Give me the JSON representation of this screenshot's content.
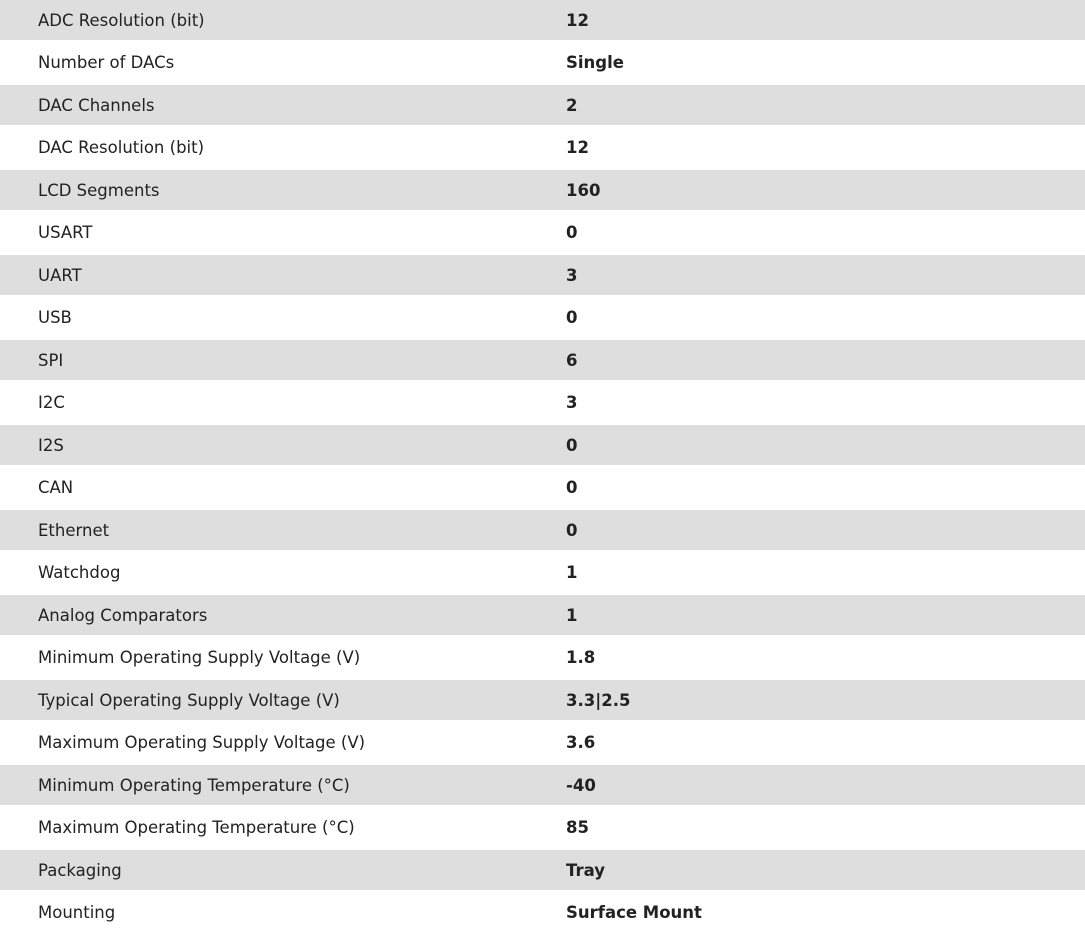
{
  "specs": [
    {
      "label": "ADC Resolution (bit)",
      "value": "12"
    },
    {
      "label": "Number of DACs",
      "value": "Single"
    },
    {
      "label": "DAC Channels",
      "value": "2"
    },
    {
      "label": "DAC Resolution (bit)",
      "value": "12"
    },
    {
      "label": "LCD Segments",
      "value": "160"
    },
    {
      "label": "USART",
      "value": "0"
    },
    {
      "label": "UART",
      "value": "3"
    },
    {
      "label": "USB",
      "value": "0"
    },
    {
      "label": "SPI",
      "value": "6"
    },
    {
      "label": "I2C",
      "value": "3"
    },
    {
      "label": "I2S",
      "value": "0"
    },
    {
      "label": "CAN",
      "value": "0"
    },
    {
      "label": "Ethernet",
      "value": "0"
    },
    {
      "label": "Watchdog",
      "value": "1"
    },
    {
      "label": "Analog Comparators",
      "value": "1"
    },
    {
      "label": "Minimum Operating Supply Voltage (V)",
      "value": "1.8"
    },
    {
      "label": "Typical Operating Supply Voltage (V)",
      "value": "3.3|2.5"
    },
    {
      "label": "Maximum Operating Supply Voltage (V)",
      "value": "3.6"
    },
    {
      "label": "Minimum Operating Temperature (°C)",
      "value": "-40"
    },
    {
      "label": "Maximum Operating Temperature (°C)",
      "value": "85"
    },
    {
      "label": "Packaging",
      "value": "Tray"
    },
    {
      "label": "Mounting",
      "value": "Surface Mount"
    }
  ],
  "colors": {
    "stripe": "#dedede",
    "text": "#222222"
  }
}
